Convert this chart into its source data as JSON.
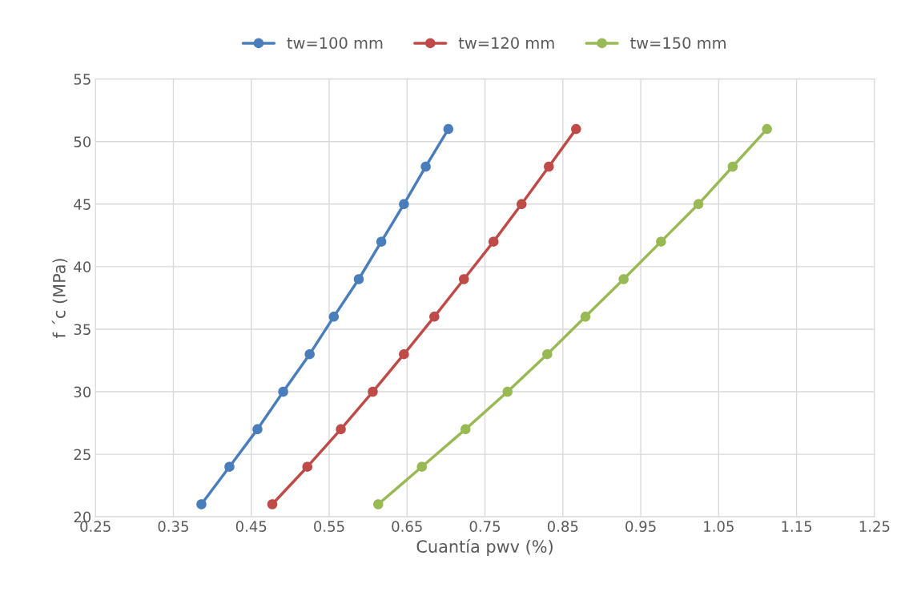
{
  "chart_data": {
    "type": "line",
    "xlabel": "Cuantía pwv (%)",
    "ylabel": "f ´c (MPa)",
    "xlim": [
      0.25,
      1.25
    ],
    "xticks": [
      0.25,
      0.35,
      0.45,
      0.55,
      0.65,
      0.75,
      0.85,
      0.95,
      1.05,
      1.15,
      1.25
    ],
    "ylim": [
      20,
      55
    ],
    "yticks": [
      20,
      25,
      30,
      35,
      40,
      45,
      50,
      55
    ],
    "grid": true,
    "legend": "top",
    "marker": "circle",
    "line_style": "solid",
    "series": [
      {
        "name": "tw=100 mm",
        "color": "#4a7ebb",
        "x": [
          0.386,
          0.422,
          0.458,
          0.491,
          0.525,
          0.556,
          0.588,
          0.617,
          0.646,
          0.674,
          0.703
        ],
        "values": [
          21,
          24,
          27,
          30,
          33,
          36,
          39,
          42,
          45,
          48,
          51
        ]
      },
      {
        "name": "tw=120 mm",
        "color": "#be4b48",
        "x": [
          0.477,
          0.522,
          0.565,
          0.606,
          0.646,
          0.685,
          0.723,
          0.761,
          0.797,
          0.832,
          0.867
        ],
        "values": [
          21,
          24,
          27,
          30,
          33,
          36,
          39,
          42,
          45,
          48,
          51
        ]
      },
      {
        "name": "tw=150 mm",
        "color": "#98b954",
        "x": [
          0.613,
          0.669,
          0.725,
          0.779,
          0.83,
          0.879,
          0.928,
          0.976,
          1.024,
          1.068,
          1.112
        ],
        "values": [
          21,
          24,
          27,
          30,
          33,
          36,
          39,
          42,
          45,
          48,
          51
        ]
      }
    ]
  }
}
